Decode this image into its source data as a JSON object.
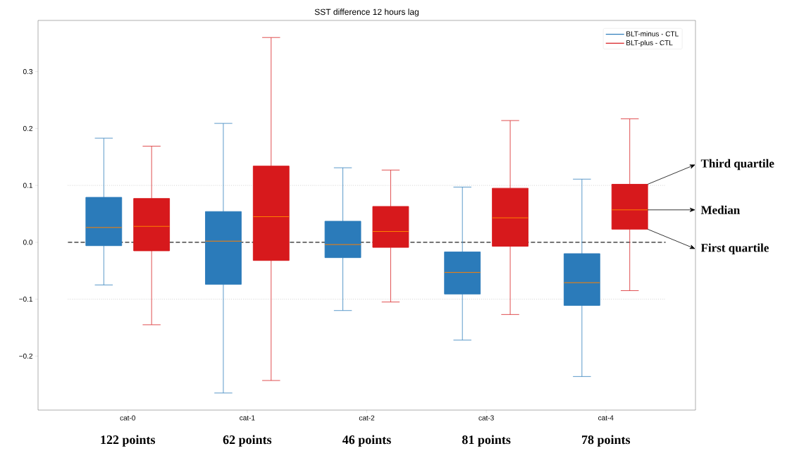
{
  "chart_data": {
    "type": "box",
    "title": "SST difference 12 hours lag",
    "categories": [
      "cat-0",
      "cat-1",
      "cat-2",
      "cat-3",
      "cat-4"
    ],
    "series": [
      {
        "name": "BLT-minus - CTL",
        "color": "#2b7bba",
        "boxes": [
          {
            "low": -0.075,
            "q1": -0.006,
            "median": 0.026,
            "q3": 0.079,
            "high": 0.183
          },
          {
            "low": -0.265,
            "q1": -0.074,
            "median": 0.002,
            "q3": 0.054,
            "high": 0.209
          },
          {
            "low": -0.12,
            "q1": -0.027,
            "median": -0.004,
            "q3": 0.037,
            "high": 0.131
          },
          {
            "low": -0.172,
            "q1": -0.091,
            "median": -0.053,
            "q3": -0.017,
            "high": 0.097
          },
          {
            "low": -0.236,
            "q1": -0.111,
            "median": -0.071,
            "q3": -0.02,
            "high": 0.111
          }
        ]
      },
      {
        "name": "BLT-plus - CTL",
        "color": "#d7191c",
        "boxes": [
          {
            "low": -0.145,
            "q1": -0.015,
            "median": 0.028,
            "q3": 0.077,
            "high": 0.169
          },
          {
            "low": -0.243,
            "q1": -0.032,
            "median": 0.045,
            "q3": 0.134,
            "high": 0.36
          },
          {
            "low": -0.105,
            "q1": -0.009,
            "median": 0.019,
            "q3": 0.063,
            "high": 0.127
          },
          {
            "low": -0.127,
            "q1": -0.007,
            "median": 0.043,
            "q3": 0.095,
            "high": 0.214
          },
          {
            "low": -0.085,
            "q1": 0.023,
            "median": 0.057,
            "q3": 0.102,
            "high": 0.217
          }
        ]
      }
    ],
    "ylim": [
      -0.295,
      0.39
    ],
    "yticks": [
      {
        "value": -0.2,
        "label": "−0.2"
      },
      {
        "value": -0.1,
        "label": "−0.1"
      },
      {
        "value": 0,
        "label": "0.0"
      },
      0.1,
      0.2,
      0.3
    ],
    "ref_lines": [
      {
        "axis": "y",
        "value": 0,
        "color": "#222222",
        "line_style": "dashed"
      },
      {
        "axis": "y",
        "value": 0.1,
        "color": "#bbbbbb",
        "line_style": "dotted"
      },
      {
        "axis": "y",
        "value": -0.1,
        "color": "#bbbbbb",
        "line_style": "dotted"
      }
    ],
    "legend": "top right",
    "annotations": [
      "122 points",
      "62 points",
      "46 points",
      "81 points",
      "78 points",
      "Third quartile",
      "Median",
      "First quartile"
    ]
  }
}
